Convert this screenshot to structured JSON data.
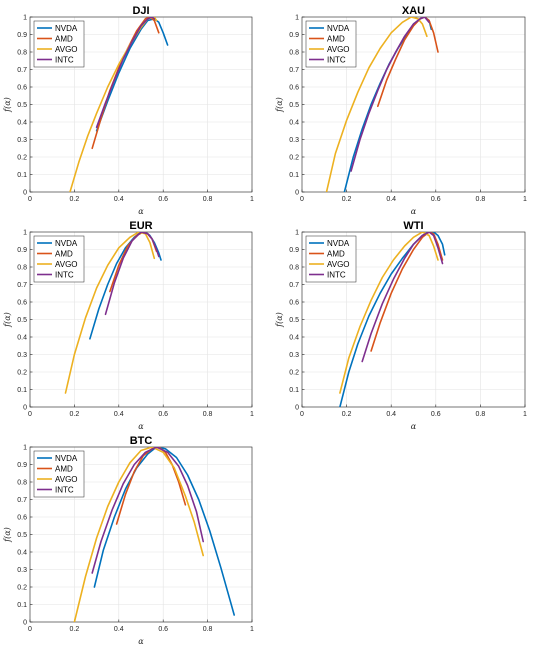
{
  "chart_data": [
    {
      "type": "line",
      "title": "DJI",
      "xlabel": "α",
      "ylabel": "f(α)",
      "xlim": [
        0,
        1
      ],
      "ylim": [
        0,
        1
      ],
      "xticks": [
        "0",
        "0.2",
        "0.4",
        "0.6",
        "0.8",
        "1"
      ],
      "yticks": [
        "0",
        "0.1",
        "0.2",
        "0.3",
        "0.4",
        "0.5",
        "0.6",
        "0.7",
        "0.8",
        "0.9",
        "1"
      ],
      "grid": true,
      "legend_position": "top-left",
      "series": [
        {
          "name": "NVDA",
          "color": "#0072BD",
          "x": [
            0.3,
            0.35,
            0.4,
            0.45,
            0.5,
            0.53,
            0.56,
            0.58,
            0.6,
            0.62
          ],
          "y": [
            0.35,
            0.52,
            0.68,
            0.82,
            0.93,
            0.98,
            0.99,
            0.97,
            0.91,
            0.84
          ]
        },
        {
          "name": "AMD",
          "color": "#D95319",
          "x": [
            0.28,
            0.32,
            0.36,
            0.4,
            0.44,
            0.48,
            0.52,
            0.54,
            0.56,
            0.58
          ],
          "y": [
            0.25,
            0.42,
            0.58,
            0.71,
            0.82,
            0.92,
            0.99,
            1.0,
            0.98,
            0.91
          ]
        },
        {
          "name": "AVGO",
          "color": "#EDB120",
          "x": [
            0.18,
            0.22,
            0.26,
            0.3,
            0.35,
            0.4,
            0.45,
            0.5,
            0.53,
            0.56,
            0.57
          ],
          "y": [
            0.0,
            0.17,
            0.32,
            0.45,
            0.6,
            0.73,
            0.84,
            0.94,
            0.99,
            1.0,
            0.98
          ]
        },
        {
          "name": "INTC",
          "color": "#7E2F8E",
          "x": [
            0.3,
            0.34,
            0.38,
            0.42,
            0.46,
            0.5,
            0.53,
            0.55,
            0.56
          ],
          "y": [
            0.37,
            0.51,
            0.64,
            0.76,
            0.86,
            0.95,
            0.99,
            1.0,
            0.99
          ]
        }
      ]
    },
    {
      "type": "line",
      "title": "XAU",
      "xlabel": "α",
      "ylabel": "f(α)",
      "xlim": [
        0,
        1
      ],
      "ylim": [
        0,
        1
      ],
      "xticks": [
        "0",
        "0.2",
        "0.4",
        "0.6",
        "0.8",
        "1"
      ],
      "yticks": [
        "0",
        "0.1",
        "0.2",
        "0.3",
        "0.4",
        "0.5",
        "0.6",
        "0.7",
        "0.8",
        "0.9",
        "1"
      ],
      "grid": true,
      "legend_position": "top-left",
      "series": [
        {
          "name": "NVDA",
          "color": "#0072BD",
          "x": [
            0.19,
            0.23,
            0.27,
            0.31,
            0.35,
            0.39,
            0.43,
            0.47,
            0.5,
            0.53,
            0.55,
            0.57,
            0.58
          ],
          "y": [
            0.0,
            0.2,
            0.36,
            0.5,
            0.62,
            0.73,
            0.82,
            0.9,
            0.96,
            0.99,
            1.0,
            0.98,
            0.93
          ]
        },
        {
          "name": "AMD",
          "color": "#D95319",
          "x": [
            0.34,
            0.38,
            0.42,
            0.46,
            0.5,
            0.53,
            0.55,
            0.57,
            0.59,
            0.61
          ],
          "y": [
            0.49,
            0.64,
            0.76,
            0.87,
            0.95,
            0.99,
            1.0,
            0.98,
            0.91,
            0.8
          ]
        },
        {
          "name": "AVGO",
          "color": "#EDB120",
          "x": [
            0.11,
            0.15,
            0.2,
            0.25,
            0.3,
            0.35,
            0.4,
            0.45,
            0.49,
            0.52,
            0.54,
            0.56
          ],
          "y": [
            0.0,
            0.22,
            0.41,
            0.57,
            0.71,
            0.82,
            0.91,
            0.97,
            1.0,
            0.99,
            0.96,
            0.89
          ]
        },
        {
          "name": "INTC",
          "color": "#7E2F8E",
          "x": [
            0.22,
            0.26,
            0.3,
            0.34,
            0.38,
            0.42,
            0.46,
            0.5,
            0.53,
            0.55,
            0.57
          ],
          "y": [
            0.12,
            0.3,
            0.45,
            0.58,
            0.7,
            0.8,
            0.89,
            0.96,
            0.99,
            1.0,
            0.97
          ]
        }
      ]
    },
    {
      "type": "line",
      "title": "EUR",
      "xlabel": "α",
      "ylabel": "f(α)",
      "xlim": [
        0,
        1
      ],
      "ylim": [
        0,
        1
      ],
      "xticks": [
        "0",
        "0.2",
        "0.4",
        "0.6",
        "0.8",
        "1"
      ],
      "yticks": [
        "0",
        "0.1",
        "0.2",
        "0.3",
        "0.4",
        "0.5",
        "0.6",
        "0.7",
        "0.8",
        "0.9",
        "1"
      ],
      "grid": true,
      "legend_position": "top-left",
      "series": [
        {
          "name": "NVDA",
          "color": "#0072BD",
          "x": [
            0.27,
            0.31,
            0.35,
            0.39,
            0.43,
            0.47,
            0.5,
            0.52,
            0.54,
            0.56,
            0.58,
            0.59
          ],
          "y": [
            0.39,
            0.56,
            0.7,
            0.82,
            0.91,
            0.97,
            1.0,
            1.0,
            0.98,
            0.94,
            0.88,
            0.84
          ]
        },
        {
          "name": "AMD",
          "color": "#D95319",
          "x": [
            0.36,
            0.4,
            0.44,
            0.48,
            0.51,
            0.53,
            0.55,
            0.57
          ],
          "y": [
            0.66,
            0.81,
            0.92,
            0.98,
            1.0,
            0.99,
            0.96,
            0.89
          ]
        },
        {
          "name": "AVGO",
          "color": "#EDB120",
          "x": [
            0.16,
            0.2,
            0.25,
            0.3,
            0.35,
            0.4,
            0.45,
            0.49,
            0.52,
            0.54,
            0.56
          ],
          "y": [
            0.08,
            0.3,
            0.51,
            0.68,
            0.81,
            0.91,
            0.97,
            1.0,
            0.99,
            0.94,
            0.85
          ]
        },
        {
          "name": "INTC",
          "color": "#7E2F8E",
          "x": [
            0.34,
            0.38,
            0.42,
            0.46,
            0.5,
            0.53,
            0.55,
            0.57,
            0.58
          ],
          "y": [
            0.53,
            0.71,
            0.85,
            0.95,
            1.0,
            0.99,
            0.96,
            0.9,
            0.86
          ]
        }
      ]
    },
    {
      "type": "line",
      "title": "WTI",
      "xlabel": "α",
      "ylabel": "f(α)",
      "xlim": [
        0,
        1
      ],
      "ylim": [
        0,
        1
      ],
      "xticks": [
        "0",
        "0.2",
        "0.4",
        "0.6",
        "0.8",
        "1"
      ],
      "yticks": [
        "0",
        "0.1",
        "0.2",
        "0.3",
        "0.4",
        "0.5",
        "0.6",
        "0.7",
        "0.8",
        "0.9",
        "1"
      ],
      "grid": true,
      "legend_position": "top-left",
      "series": [
        {
          "name": "NVDA",
          "color": "#0072BD",
          "x": [
            0.17,
            0.21,
            0.25,
            0.3,
            0.35,
            0.4,
            0.45,
            0.5,
            0.54,
            0.57,
            0.59,
            0.61,
            0.63,
            0.64
          ],
          "y": [
            0.0,
            0.2,
            0.36,
            0.52,
            0.65,
            0.76,
            0.85,
            0.93,
            0.98,
            1.0,
            1.0,
            0.98,
            0.93,
            0.87
          ]
        },
        {
          "name": "AMD",
          "color": "#D95319",
          "x": [
            0.31,
            0.35,
            0.4,
            0.45,
            0.5,
            0.54,
            0.57,
            0.59,
            0.61,
            0.63
          ],
          "y": [
            0.32,
            0.48,
            0.65,
            0.79,
            0.9,
            0.97,
            1.0,
            0.99,
            0.93,
            0.84
          ]
        },
        {
          "name": "AVGO",
          "color": "#EDB120",
          "x": [
            0.17,
            0.21,
            0.26,
            0.31,
            0.36,
            0.41,
            0.46,
            0.5,
            0.54,
            0.57,
            0.59,
            0.61
          ],
          "y": [
            0.08,
            0.28,
            0.46,
            0.61,
            0.74,
            0.84,
            0.92,
            0.97,
            1.0,
            0.98,
            0.92,
            0.84
          ]
        },
        {
          "name": "INTC",
          "color": "#7E2F8E",
          "x": [
            0.27,
            0.31,
            0.36,
            0.41,
            0.46,
            0.5,
            0.54,
            0.57,
            0.59,
            0.61,
            0.63
          ],
          "y": [
            0.26,
            0.42,
            0.59,
            0.73,
            0.85,
            0.93,
            0.98,
            1.0,
            0.98,
            0.91,
            0.82
          ]
        }
      ]
    },
    {
      "type": "line",
      "title": "BTC",
      "xlabel": "α",
      "ylabel": "f(α)",
      "xlim": [
        0,
        1
      ],
      "ylim": [
        0,
        1
      ],
      "xticks": [
        "0",
        "0.2",
        "0.4",
        "0.6",
        "0.8",
        "1"
      ],
      "yticks": [
        "0",
        "0.1",
        "0.2",
        "0.3",
        "0.4",
        "0.5",
        "0.6",
        "0.7",
        "0.8",
        "0.9",
        "1"
      ],
      "grid": true,
      "legend_position": "top-left",
      "series": [
        {
          "name": "NVDA",
          "color": "#0072BD",
          "x": [
            0.29,
            0.33,
            0.38,
            0.43,
            0.48,
            0.53,
            0.57,
            0.61,
            0.66,
            0.71,
            0.76,
            0.81,
            0.86,
            0.9,
            0.92
          ],
          "y": [
            0.2,
            0.41,
            0.6,
            0.76,
            0.88,
            0.96,
            1.0,
            0.99,
            0.94,
            0.84,
            0.7,
            0.52,
            0.31,
            0.13,
            0.04
          ]
        },
        {
          "name": "AMD",
          "color": "#D95319",
          "x": [
            0.39,
            0.43,
            0.47,
            0.51,
            0.55,
            0.58,
            0.61,
            0.64,
            0.67,
            0.7
          ],
          "y": [
            0.56,
            0.73,
            0.86,
            0.95,
            0.99,
            1.0,
            0.97,
            0.9,
            0.8,
            0.67
          ]
        },
        {
          "name": "AVGO",
          "color": "#EDB120",
          "x": [
            0.2,
            0.25,
            0.3,
            0.35,
            0.4,
            0.45,
            0.5,
            0.55,
            0.6,
            0.65,
            0.7,
            0.74,
            0.78
          ],
          "y": [
            0.0,
            0.26,
            0.48,
            0.66,
            0.8,
            0.91,
            0.98,
            1.0,
            0.97,
            0.88,
            0.72,
            0.57,
            0.38
          ]
        },
        {
          "name": "INTC",
          "color": "#7E2F8E",
          "x": [
            0.28,
            0.32,
            0.37,
            0.42,
            0.47,
            0.52,
            0.57,
            0.62,
            0.67,
            0.71,
            0.75,
            0.78
          ],
          "y": [
            0.28,
            0.46,
            0.64,
            0.79,
            0.9,
            0.97,
            1.0,
            0.97,
            0.89,
            0.78,
            0.63,
            0.46
          ]
        }
      ]
    }
  ]
}
